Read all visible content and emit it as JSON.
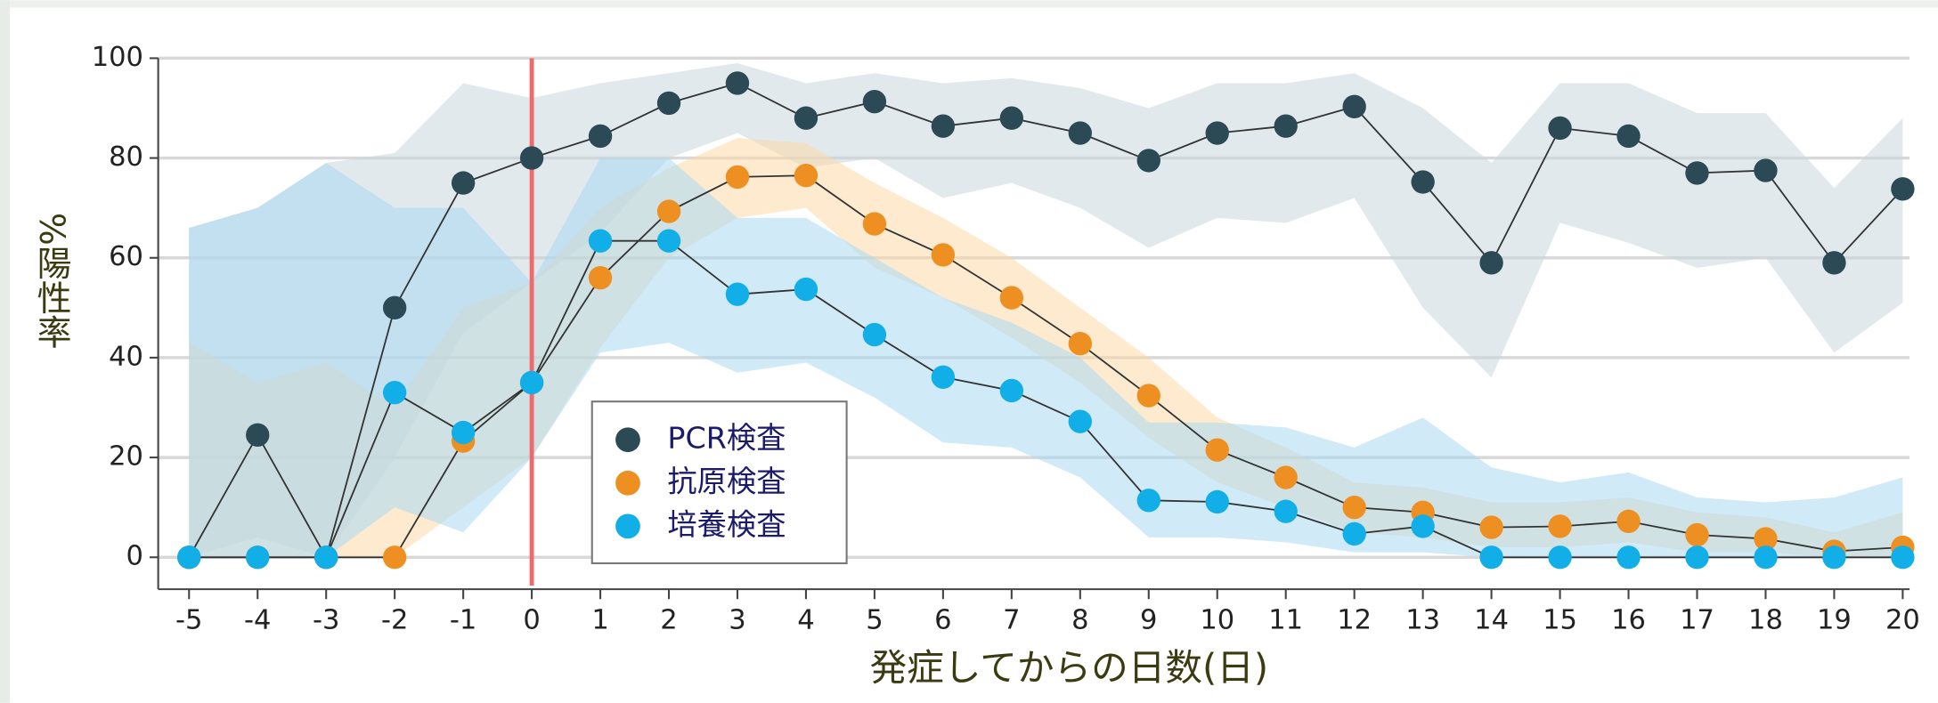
{
  "chart_data": {
    "type": "line",
    "xlabel": "発症してからの日数(日)",
    "ylabel": "%陽性率",
    "x": [
      -5,
      -4,
      -3,
      -2,
      -1,
      0,
      1,
      2,
      3,
      4,
      5,
      6,
      7,
      8,
      9,
      10,
      11,
      12,
      13,
      14,
      15,
      16,
      17,
      18,
      19,
      20
    ],
    "xlim": [
      -5.45,
      20.1
    ],
    "xticks": [
      -5,
      -4,
      -3,
      -2,
      -1,
      0,
      1,
      2,
      3,
      4,
      5,
      6,
      7,
      8,
      9,
      10,
      11,
      12,
      13,
      14,
      15,
      16,
      17,
      18,
      19,
      20
    ],
    "ylim": [
      -6.4,
      100
    ],
    "yticks": [
      0,
      20,
      40,
      60,
      80,
      100
    ],
    "grid": true,
    "vline": 0,
    "vline_color": "#ee6b6b",
    "series": [
      {
        "name": "PCR検査",
        "color": "#2b4a55",
        "band_color": "#c9d7df",
        "values": [
          0,
          24.5,
          0,
          50,
          75,
          80,
          84.4,
          91,
          95,
          88,
          91.3,
          86.4,
          88,
          85,
          79.5,
          85,
          86.4,
          90.3,
          75.2,
          59,
          86,
          84.4,
          77,
          77.5,
          59,
          73.8
        ],
        "lower": [
          0,
          4,
          0,
          20,
          45,
          55,
          65,
          80,
          85,
          78,
          80,
          72,
          75,
          70,
          62,
          68,
          67,
          72,
          50,
          36,
          67,
          63,
          58,
          60,
          41,
          51
        ],
        "upper": [
          66,
          70,
          79,
          81,
          95,
          92,
          95,
          97,
          99,
          95,
          97,
          95,
          96,
          94,
          90,
          95,
          95,
          97,
          90,
          79,
          95,
          95,
          89,
          89,
          74,
          88
        ]
      },
      {
        "name": "抗原検査",
        "color": "#ee8f22",
        "band_color": "#fbd8a8",
        "values": [
          0,
          0,
          0,
          0,
          23.3,
          35,
          56,
          69.3,
          76.2,
          76.5,
          66.8,
          60.6,
          52,
          42.8,
          32.4,
          21.5,
          16,
          10,
          9,
          6,
          6.2,
          7.2,
          4.5,
          3.7,
          1.2,
          2
        ],
        "lower": [
          0,
          0,
          0,
          0,
          10,
          20,
          42,
          60,
          68,
          70,
          58,
          52,
          44,
          35,
          24,
          15,
          10,
          5,
          4,
          2,
          2,
          3,
          1,
          1,
          0,
          0
        ],
        "upper": [
          43,
          35,
          39,
          30,
          50,
          55,
          70,
          78,
          84,
          83,
          75,
          68,
          60,
          50,
          40,
          28,
          22,
          15,
          14,
          11,
          11,
          12,
          9,
          8,
          5,
          9
        ]
      },
      {
        "name": "培養検査",
        "color": "#12aee8",
        "band_color": "#a9d9f2",
        "values": [
          0,
          0,
          0,
          33,
          25,
          35,
          63.4,
          63.4,
          52.7,
          53.7,
          44.6,
          36.1,
          33.4,
          27.2,
          11.4,
          11.1,
          9.2,
          4.7,
          6.2,
          0,
          0,
          0,
          0,
          0,
          0,
          0
        ],
        "lower": [
          0,
          0,
          0,
          10,
          5,
          20,
          41,
          43,
          37,
          39,
          32,
          23,
          22,
          16,
          4,
          4,
          3,
          1,
          1,
          0,
          0,
          0,
          0,
          0,
          0,
          0
        ],
        "upper": [
          66,
          70,
          79,
          70,
          70,
          55,
          80,
          80,
          68,
          68,
          60,
          52,
          47,
          40,
          27,
          27,
          26,
          22,
          28,
          18,
          15,
          17,
          12,
          11,
          12,
          16
        ]
      }
    ]
  }
}
